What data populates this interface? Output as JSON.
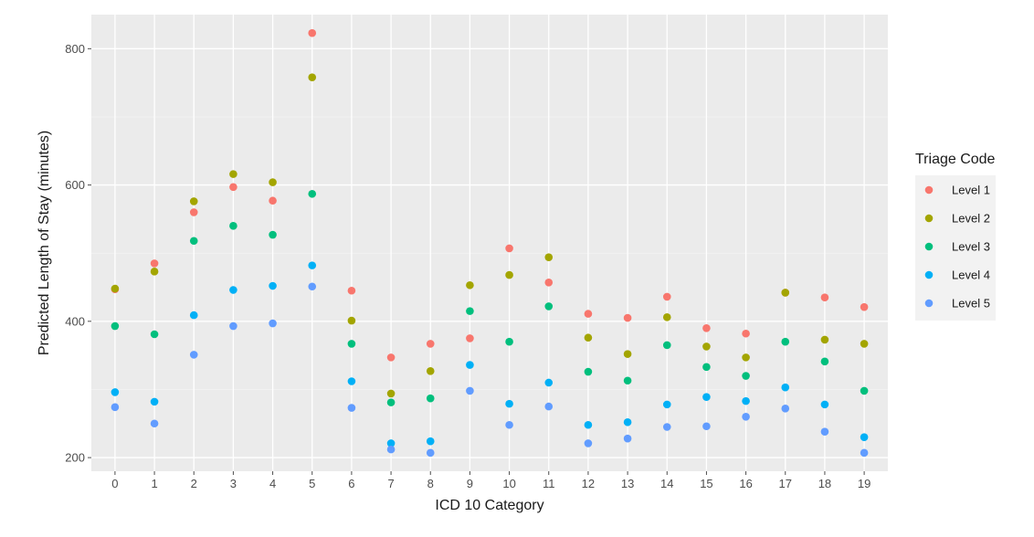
{
  "chart_data": {
    "type": "scatter",
    "xlabel": "ICD 10 Category",
    "ylabel": "Predicted Length of Stay (minutes)",
    "x": [
      "0",
      "1",
      "2",
      "3",
      "4",
      "5",
      "6",
      "7",
      "8",
      "9",
      "10",
      "11",
      "12",
      "13",
      "14",
      "15",
      "16",
      "17",
      "18",
      "19"
    ],
    "xlim": [
      -0.6,
      19.6
    ],
    "ylim": [
      180,
      850
    ],
    "yticks": [
      200,
      400,
      600,
      800
    ],
    "ytick_labels": [
      "200",
      "400",
      "600",
      "800"
    ],
    "grid": true,
    "legend": {
      "title": "Triage Code",
      "placement": "right"
    },
    "series": [
      {
        "name": "Level 1",
        "color": "#F8766D",
        "values": [
          447,
          485,
          560,
          597,
          577,
          823,
          445,
          347,
          367,
          375,
          507,
          457,
          411,
          405,
          436,
          390,
          382,
          442,
          435,
          421
        ]
      },
      {
        "name": "Level 2",
        "color": "#A3A500",
        "values": [
          448,
          473,
          576,
          616,
          604,
          758,
          401,
          294,
          327,
          453,
          468,
          494,
          376,
          352,
          406,
          363,
          347,
          442,
          373,
          367
        ]
      },
      {
        "name": "Level 3",
        "color": "#00BF7D",
        "values": [
          393,
          381,
          518,
          540,
          527,
          587,
          367,
          281,
          287,
          415,
          370,
          422,
          326,
          313,
          365,
          333,
          320,
          370,
          341,
          298
        ]
      },
      {
        "name": "Level 4",
        "color": "#00B0F6",
        "values": [
          296,
          282,
          409,
          446,
          452,
          482,
          312,
          221,
          224,
          336,
          279,
          310,
          248,
          252,
          278,
          289,
          283,
          303,
          278,
          230
        ]
      },
      {
        "name": "Level 5",
        "color": "#619CFF",
        "values": [
          274,
          250,
          351,
          393,
          397,
          451,
          273,
          212,
          207,
          298,
          248,
          275,
          221,
          228,
          245,
          246,
          260,
          272,
          238,
          207
        ]
      }
    ]
  }
}
